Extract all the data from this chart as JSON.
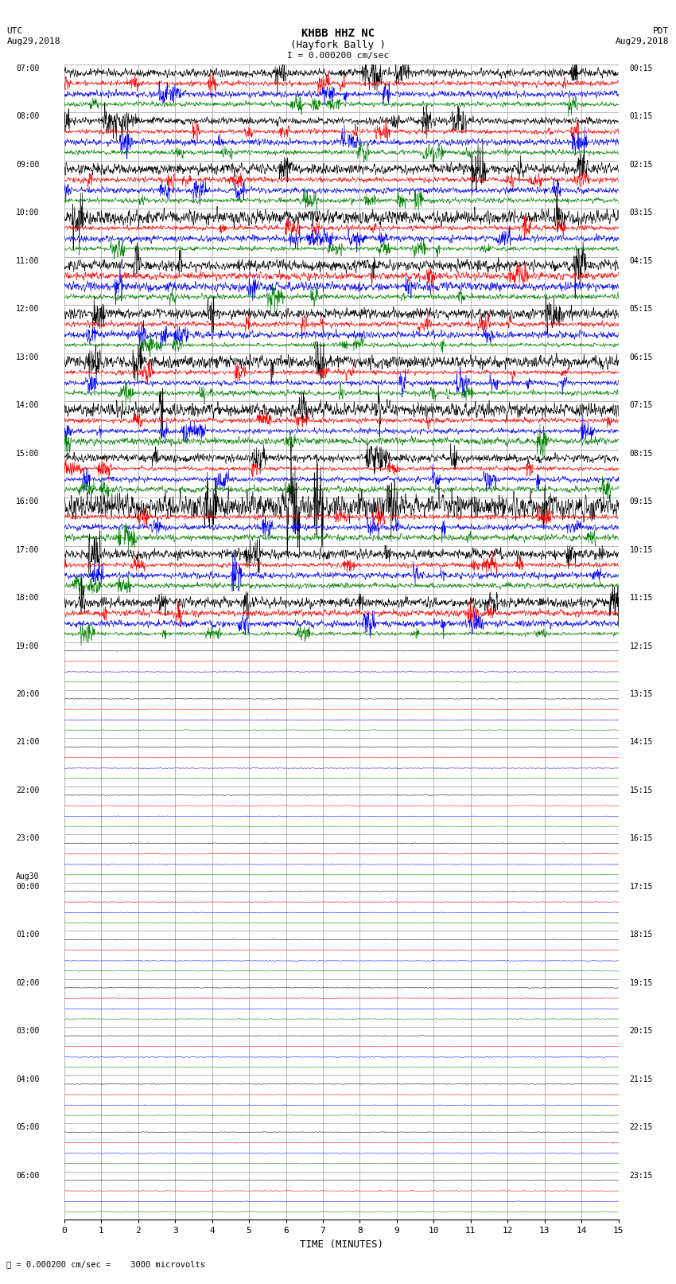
{
  "title_line1": "KHBB HHZ NC",
  "title_line2": "(Hayfork Bally )",
  "scale_text": "I = 0.000200 cm/sec",
  "bottom_scale_text": "= 0.000200 cm/sec =    3000 microvolts",
  "utc_label": "UTC",
  "pdt_label": "PDT",
  "date_left": "Aug29,2018",
  "date_right": "Aug29,2018",
  "xlabel": "TIME (MINUTES)",
  "xmin": 0,
  "xmax": 15,
  "xticks": [
    0,
    1,
    2,
    3,
    4,
    5,
    6,
    7,
    8,
    9,
    10,
    11,
    12,
    13,
    14,
    15
  ],
  "num_hour_groups": 24,
  "traces_per_group": 4,
  "trace_colors": [
    "black",
    "red",
    "blue",
    "green"
  ],
  "active_groups": 12,
  "utc_hour_labels": [
    "07:00",
    "08:00",
    "09:00",
    "10:00",
    "11:00",
    "12:00",
    "13:00",
    "14:00",
    "15:00",
    "16:00",
    "17:00",
    "18:00",
    "19:00",
    "20:00",
    "21:00",
    "22:00",
    "23:00",
    "Aug30\n00:00",
    "01:00",
    "02:00",
    "03:00",
    "04:00",
    "05:00",
    "06:00"
  ],
  "pdt_hour_labels": [
    "00:15",
    "01:15",
    "02:15",
    "03:15",
    "04:15",
    "05:15",
    "06:15",
    "07:15",
    "08:15",
    "09:15",
    "10:15",
    "11:15",
    "12:15",
    "13:15",
    "14:15",
    "15:15",
    "16:15",
    "17:15",
    "18:15",
    "19:15",
    "20:15",
    "21:15",
    "22:15",
    "23:15"
  ],
  "bg_color": "#ffffff",
  "grid_color": "#999999",
  "figwidth": 8.5,
  "figheight": 16.13,
  "dpi": 100
}
